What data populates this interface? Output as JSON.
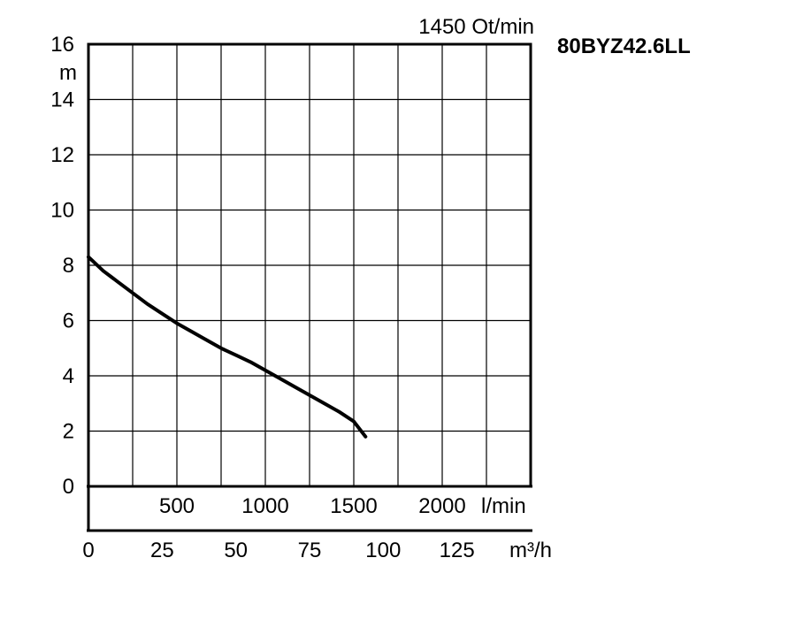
{
  "chart_data": {
    "type": "line",
    "title": "80BYZ42.6LL",
    "speed_label": "1450 Ot/min",
    "ylabel": "m",
    "ylim": [
      0,
      16
    ],
    "y_ticks": [
      "0",
      "2",
      "4",
      "6",
      "8",
      "10",
      "12",
      "14",
      "16"
    ],
    "xlabel_lmin": "l/min",
    "x_lmin_ticks": [
      "500",
      "1000",
      "1500",
      "2000"
    ],
    "x_lmin_values": [
      500,
      1000,
      1500,
      2000
    ],
    "xlabel_m3h": "m³/h",
    "x_m3h_ticks": [
      "0",
      "25",
      "50",
      "75",
      "100",
      "125"
    ],
    "x_m3h_values": [
      0,
      25,
      50,
      75,
      100,
      125
    ],
    "xlim_m3h": [
      0,
      150
    ],
    "grid": true,
    "series": [
      {
        "x": [
          0,
          5,
          10,
          15,
          20,
          25,
          30,
          35,
          40,
          45,
          50,
          55,
          60,
          65,
          70,
          75,
          80,
          85,
          90,
          94
        ],
        "y": [
          8.3,
          7.8,
          7.4,
          7.0,
          6.6,
          6.25,
          5.9,
          5.6,
          5.3,
          5.0,
          4.75,
          4.5,
          4.2,
          3.9,
          3.6,
          3.3,
          3.0,
          2.7,
          2.35,
          1.8
        ]
      }
    ]
  }
}
